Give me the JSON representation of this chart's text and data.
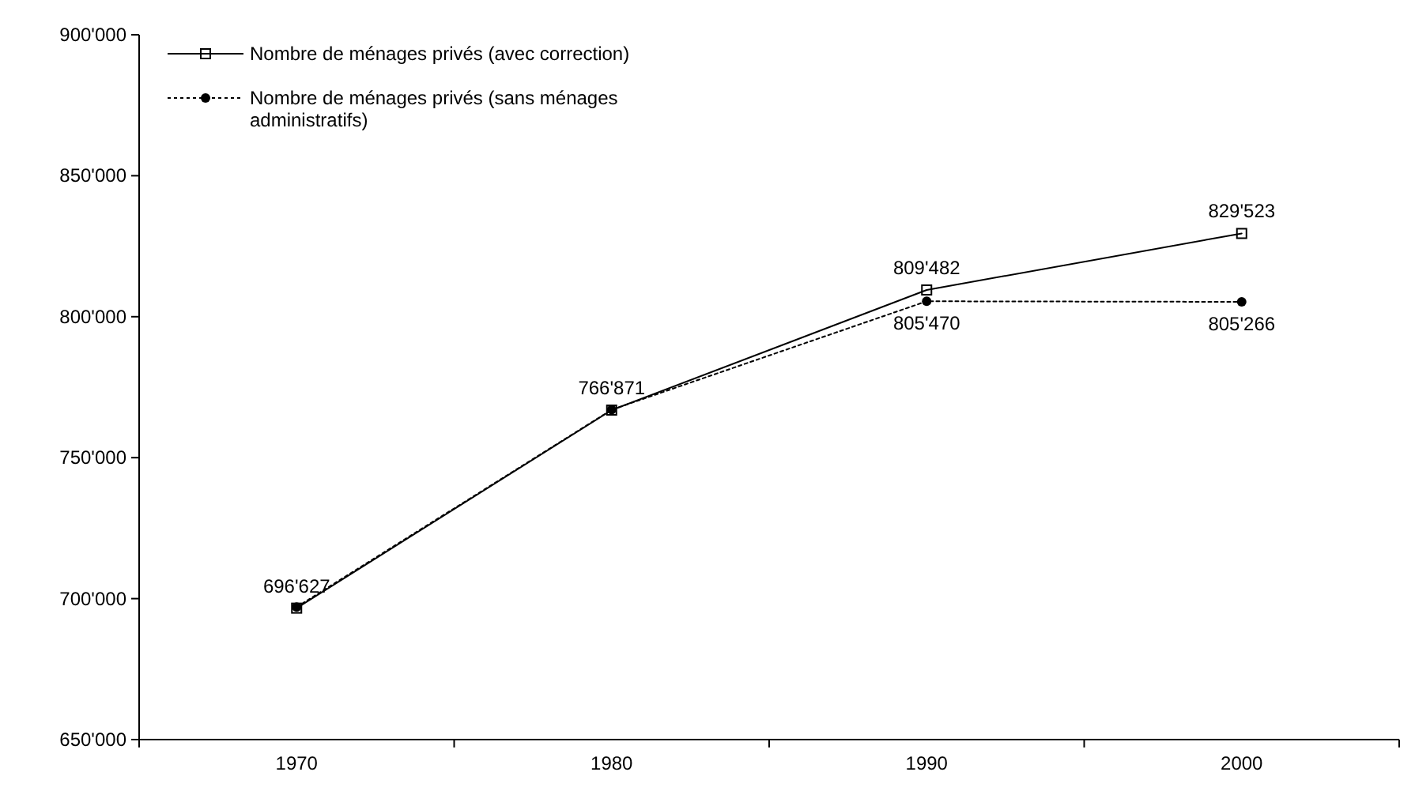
{
  "chart_data": {
    "type": "line",
    "categories": [
      "1970",
      "1980",
      "1990",
      "2000"
    ],
    "series": [
      {
        "name": "Nombre de ménages privés (avec correction)",
        "color": "#000000",
        "marker": "square",
        "line_style": "solid",
        "values": [
          696627,
          766871,
          809482,
          829523
        ],
        "value_labels": [
          "696'627",
          "766'871",
          "809'482",
          "829'523"
        ]
      },
      {
        "name": "Nombre de ménages privés (sans ménages administratifs)",
        "color": "#000000",
        "marker": "circle",
        "line_style": "dotted",
        "values": [
          697000,
          767000,
          805470,
          805266
        ],
        "value_labels": [
          null,
          null,
          "805'470",
          "805'266"
        ]
      }
    ],
    "ylim": [
      650000,
      900000
    ],
    "yticks": [
      {
        "value": 650000,
        "label": "650'000"
      },
      {
        "value": 700000,
        "label": "700'000"
      },
      {
        "value": 750000,
        "label": "750'000"
      },
      {
        "value": 800000,
        "label": "800'000"
      },
      {
        "value": 850000,
        "label": "850'000"
      },
      {
        "value": 900000,
        "label": "900'000"
      }
    ],
    "grid": false,
    "legend": "top left"
  }
}
